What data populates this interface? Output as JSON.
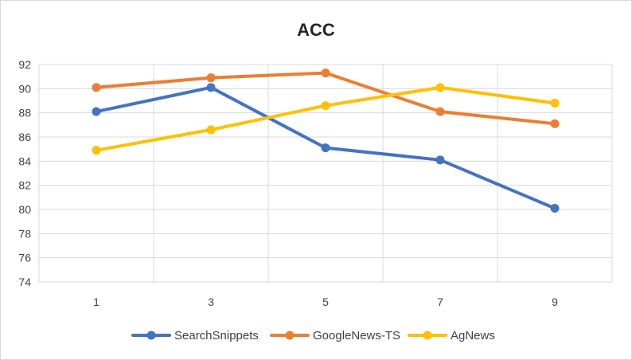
{
  "chart_data": {
    "type": "line",
    "title": "ACC",
    "xlabel": "",
    "ylabel": "",
    "x": [
      1,
      3,
      5,
      7,
      9
    ],
    "ylim": [
      74,
      92
    ],
    "yticks": [
      74,
      76,
      78,
      80,
      82,
      84,
      86,
      88,
      90,
      92
    ],
    "grid": true,
    "legend_position": "bottom",
    "series": [
      {
        "name": "SearchSnippets",
        "color": "#4472C4",
        "values": [
          88.1,
          90.1,
          85.1,
          84.1,
          80.1
        ]
      },
      {
        "name": "GoogleNews-TS",
        "color": "#ED7D31",
        "values": [
          90.1,
          90.9,
          91.3,
          88.1,
          87.1
        ]
      },
      {
        "name": "AgNews",
        "color": "#FFC000",
        "values": [
          84.9,
          86.6,
          88.6,
          90.1,
          88.8
        ]
      }
    ]
  }
}
